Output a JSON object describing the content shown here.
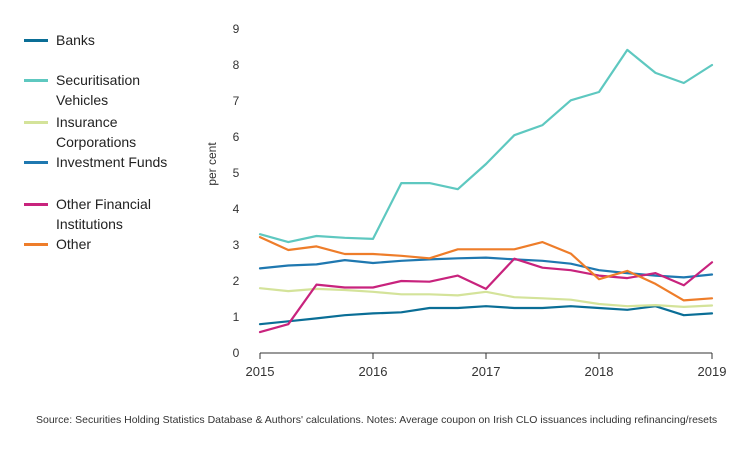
{
  "chart_data": {
    "type": "line",
    "title": "",
    "xlabel": "",
    "ylabel": "per cent",
    "xlim": [
      2015,
      2019
    ],
    "ylim": [
      0,
      9
    ],
    "xticks": [
      2015,
      2016,
      2017,
      2018,
      2019
    ],
    "xtick_labels": [
      "2015",
      "2016",
      "2017",
      "2018",
      "2019"
    ],
    "yticks": [
      0,
      1,
      2,
      3,
      4,
      5,
      6,
      7,
      8,
      9
    ],
    "ytick_labels": [
      "0",
      "1",
      "2",
      "3",
      "4",
      "5",
      "6",
      "7",
      "8",
      "9"
    ],
    "grid": false,
    "legend_position": "left",
    "x": [
      2015.0,
      2015.25,
      2015.5,
      2015.75,
      2016.0,
      2016.25,
      2016.5,
      2016.75,
      2017.0,
      2017.25,
      2017.5,
      2017.75,
      2018.0,
      2018.25,
      2018.5,
      2018.75,
      2019.0
    ],
    "series": [
      {
        "name": "Banks",
        "color": "#0a6e96",
        "values": [
          0.8,
          0.88,
          0.96,
          1.05,
          1.1,
          1.13,
          1.25,
          1.25,
          1.3,
          1.25,
          1.25,
          1.3,
          1.25,
          1.2,
          1.3,
          1.05,
          1.1
        ]
      },
      {
        "name": "Securitisation Vehicles",
        "color": "#5ec8c0",
        "values": [
          3.3,
          3.08,
          3.25,
          3.2,
          3.17,
          4.72,
          4.72,
          4.55,
          5.25,
          6.05,
          6.33,
          7.02,
          7.25,
          8.42,
          7.78,
          7.5,
          8.0
        ]
      },
      {
        "name": "Insurance Corporations",
        "color": "#d4e39a",
        "values": [
          1.8,
          1.72,
          1.78,
          1.75,
          1.7,
          1.63,
          1.63,
          1.6,
          1.7,
          1.55,
          1.52,
          1.48,
          1.36,
          1.3,
          1.33,
          1.28,
          1.32
        ]
      },
      {
        "name": "Investment Funds",
        "color": "#1f78b0",
        "values": [
          2.35,
          2.43,
          2.46,
          2.58,
          2.5,
          2.56,
          2.6,
          2.63,
          2.65,
          2.6,
          2.56,
          2.48,
          2.3,
          2.22,
          2.15,
          2.1,
          2.18
        ]
      },
      {
        "name": "Other Financial Institutions",
        "color": "#c8237d",
        "values": [
          0.58,
          0.8,
          1.9,
          1.82,
          1.82,
          2.0,
          1.98,
          2.15,
          1.78,
          2.62,
          2.37,
          2.3,
          2.15,
          2.08,
          2.22,
          1.88,
          2.52
        ]
      },
      {
        "name": "Other",
        "color": "#ee7d2a",
        "values": [
          3.22,
          2.86,
          2.96,
          2.75,
          2.75,
          2.7,
          2.63,
          2.88,
          2.88,
          2.88,
          3.08,
          2.76,
          2.05,
          2.28,
          1.92,
          1.46,
          1.52
        ]
      }
    ]
  },
  "legend": {
    "items": [
      {
        "label": "Banks"
      },
      {
        "label": "Securitisation Vehicles"
      },
      {
        "label": "Insurance Corporations"
      },
      {
        "label": "Investment Funds"
      },
      {
        "label": "Other Financial Institutions"
      },
      {
        "label": "Other"
      }
    ]
  },
  "footer": {
    "source_note": "Source: Securities Holding Statistics Database & Authors' calculations. Notes: Average coupon on Irish CLO issuances including refinancing/resets"
  }
}
